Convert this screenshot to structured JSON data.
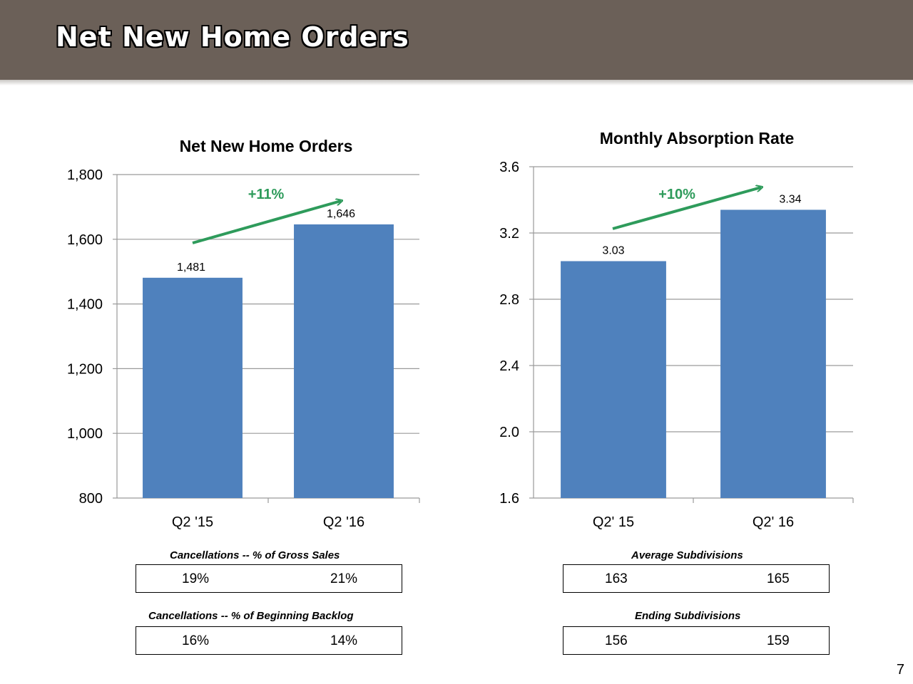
{
  "slide": {
    "title": "Net New Home Orders",
    "page_number": "7"
  },
  "chart_data": [
    {
      "type": "bar",
      "title": "Net New Home Orders",
      "categories": [
        "Q2 '15",
        "Q2 '16"
      ],
      "values": [
        1481,
        1646
      ],
      "data_labels": [
        "1,481",
        "1,646"
      ],
      "ylim": [
        800,
        1800
      ],
      "yticks": [
        "800",
        "1,000",
        "1,200",
        "1,400",
        "1,600",
        "1,800"
      ],
      "grid": true,
      "annotation": "+11%",
      "bar_color": "#4f81bd",
      "annotation_color": "#2e9b5b"
    },
    {
      "type": "bar",
      "title": "Monthly Absorption Rate",
      "categories": [
        "Q2' 15",
        "Q2' 16"
      ],
      "values": [
        3.03,
        3.34
      ],
      "data_labels": [
        "3.03",
        "3.34"
      ],
      "ylim": [
        1.6,
        3.6
      ],
      "yticks": [
        "1.6",
        "2.0",
        "2.4",
        "2.8",
        "3.2",
        "3.6"
      ],
      "grid": true,
      "annotation": "+10%",
      "bar_color": "#4f81bd",
      "annotation_color": "#2e9b5b"
    }
  ],
  "tables": {
    "cancellations_gross": {
      "label": "Cancellations -- % of Gross Sales",
      "values": [
        "19%",
        "21%"
      ]
    },
    "cancellations_backlog": {
      "label": "Cancellations -- % of Beginning Backlog",
      "values": [
        "16%",
        "14%"
      ]
    },
    "avg_subdivisions": {
      "label": "Average Subdivisions",
      "values": [
        "163",
        "165"
      ]
    },
    "end_subdivisions": {
      "label": "Ending Subdivisions",
      "values": [
        "156",
        "159"
      ]
    }
  }
}
